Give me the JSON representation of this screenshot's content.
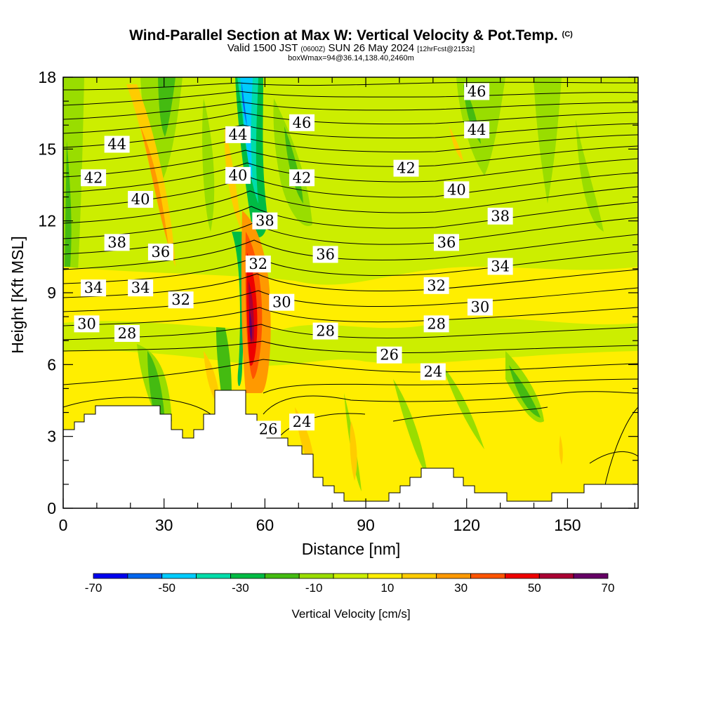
{
  "header": {
    "title": "Wind-Parallel Section at Max W: Vertical Velocity & Pot.Temp.",
    "copyright": "(C)",
    "valid_prefix": "Valid 1500 JST",
    "valid_utc": "(0600Z)",
    "valid_date": "SUN 26 May 2024",
    "forecast": "[12hrFcst@2153z]",
    "box_info": "boxWmax=94@36.14,138.40,2460m"
  },
  "chart_data": {
    "type": "heatmap",
    "xlabel": "Distance [nm]",
    "ylabel": "Height [Kft MSL]",
    "xlim": [
      0,
      171
    ],
    "ylim": [
      0,
      18
    ],
    "x_ticks": [
      0,
      30,
      60,
      90,
      120,
      150
    ],
    "y_ticks": [
      0,
      3,
      6,
      9,
      12,
      15,
      18
    ],
    "colorbar": {
      "label": "Vertical Velocity [cm/s]",
      "ticks": [
        -70,
        -50,
        -30,
        -10,
        10,
        30,
        50,
        70
      ],
      "bounds": [
        -70,
        -60,
        -50,
        -40,
        -30,
        -20,
        -10,
        0,
        10,
        20,
        30,
        40,
        50,
        60,
        70
      ],
      "colors": [
        "#0000ee",
        "#0066ee",
        "#00ccff",
        "#00ddaa",
        "#00bb44",
        "#44bb11",
        "#99dd00",
        "#ccee00",
        "#ffee00",
        "#ffcc00",
        "#ff9900",
        "#ff5500",
        "#ee0000",
        "#aa0033",
        "#660066"
      ]
    },
    "theta_contour_labels": [
      {
        "value": "46",
        "x": 71,
        "y": 16.1
      },
      {
        "value": "46",
        "x": 123,
        "y": 17.4
      },
      {
        "value": "44",
        "x": 123,
        "y": 15.8
      },
      {
        "value": "44",
        "x": 52,
        "y": 15.6
      },
      {
        "value": "44",
        "x": 16,
        "y": 15.2
      },
      {
        "value": "42",
        "x": 102,
        "y": 14.2
      },
      {
        "value": "42",
        "x": 71,
        "y": 13.8
      },
      {
        "value": "42",
        "x": 9,
        "y": 13.8
      },
      {
        "value": "40",
        "x": 52,
        "y": 13.9
      },
      {
        "value": "40",
        "x": 23,
        "y": 12.9
      },
      {
        "value": "40",
        "x": 117,
        "y": 13.3
      },
      {
        "value": "38",
        "x": 60,
        "y": 12.0
      },
      {
        "value": "38",
        "x": 130,
        "y": 12.2
      },
      {
        "value": "38",
        "x": 16,
        "y": 11.1
      },
      {
        "value": "36",
        "x": 29,
        "y": 10.7
      },
      {
        "value": "36",
        "x": 78,
        "y": 10.6
      },
      {
        "value": "36",
        "x": 114,
        "y": 11.1
      },
      {
        "value": "34",
        "x": 130,
        "y": 10.1
      },
      {
        "value": "34",
        "x": 9,
        "y": 9.2
      },
      {
        "value": "34",
        "x": 23,
        "y": 9.2
      },
      {
        "value": "32",
        "x": 58,
        "y": 10.2
      },
      {
        "value": "32",
        "x": 35,
        "y": 8.7
      },
      {
        "value": "32",
        "x": 111,
        "y": 9.3
      },
      {
        "value": "30",
        "x": 65,
        "y": 8.6
      },
      {
        "value": "30",
        "x": 124,
        "y": 8.4
      },
      {
        "value": "30",
        "x": 7,
        "y": 7.7
      },
      {
        "value": "28",
        "x": 19,
        "y": 7.3
      },
      {
        "value": "28",
        "x": 78,
        "y": 7.4
      },
      {
        "value": "28",
        "x": 111,
        "y": 7.7
      },
      {
        "value": "26",
        "x": 97,
        "y": 6.4
      },
      {
        "value": "26",
        "x": 61,
        "y": 3.3
      },
      {
        "value": "24",
        "x": 110,
        "y": 5.7
      },
      {
        "value": "24",
        "x": 71,
        "y": 3.6
      }
    ],
    "max_w_cm_s": 94
  }
}
